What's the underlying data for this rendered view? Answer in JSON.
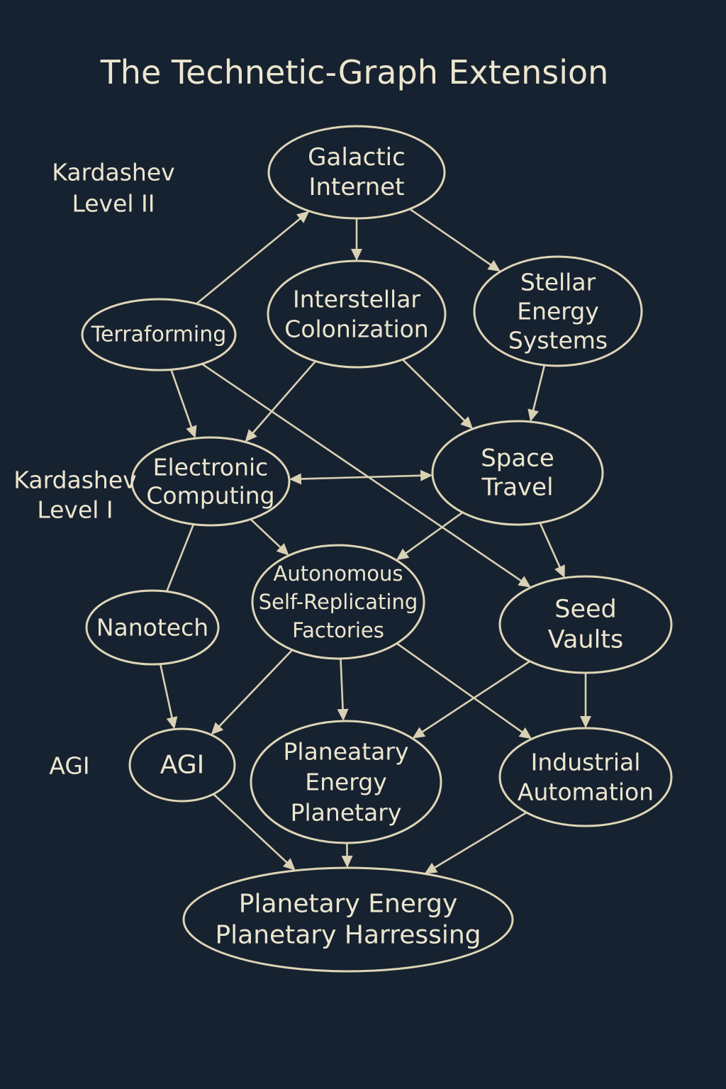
{
  "title": "The Technetic-Graph Extension",
  "colors": {
    "background": "#172230",
    "stroke": "#ddd5b6",
    "text": "#ece6cf"
  },
  "level_labels": [
    {
      "id": "kardashev-2",
      "lines": [
        "Kardashev",
        "Level II"
      ]
    },
    {
      "id": "kardashev-1",
      "lines": [
        "Kardashev",
        "Level I"
      ]
    },
    {
      "id": "agi-level",
      "lines": [
        "AGI"
      ]
    }
  ],
  "nodes": [
    {
      "id": "galactic-internet",
      "lines": [
        "Galactic",
        "Internet"
      ]
    },
    {
      "id": "terraforming",
      "lines": [
        "Terraforming"
      ]
    },
    {
      "id": "interstellar-colonization",
      "lines": [
        "Interstellar",
        "Colonization"
      ]
    },
    {
      "id": "stellar-energy-systems",
      "lines": [
        "Stellar",
        "Energy",
        "Systems"
      ]
    },
    {
      "id": "electronic-computing",
      "lines": [
        "Electronic",
        "Computing"
      ]
    },
    {
      "id": "space-travel",
      "lines": [
        "Space",
        "Travel"
      ]
    },
    {
      "id": "autonomous-factories",
      "lines": [
        "Autonomous",
        "Self-Replicating",
        "Factories"
      ]
    },
    {
      "id": "nanotech",
      "lines": [
        "Nanotech"
      ]
    },
    {
      "id": "seed-vaults",
      "lines": [
        "Seed",
        "Vaults"
      ]
    },
    {
      "id": "agi",
      "lines": [
        "AGI"
      ]
    },
    {
      "id": "planetary-energy",
      "lines": [
        "Planeatary",
        "Energy",
        "Planetary"
      ]
    },
    {
      "id": "industrial-automation",
      "lines": [
        "Industrial",
        "Automation"
      ]
    },
    {
      "id": "planetary-harnessing",
      "lines": [
        "Planetary Energy",
        "Planetary Harressing"
      ]
    }
  ],
  "edges": [
    {
      "from": "terraforming",
      "to": "galactic-internet",
      "arrow": "end"
    },
    {
      "from": "galactic-internet",
      "to": "interstellar-colonization",
      "arrow": "end"
    },
    {
      "from": "galactic-internet",
      "to": "stellar-energy-systems",
      "arrow": "end"
    },
    {
      "from": "terraforming",
      "to": "electronic-computing",
      "arrow": "end"
    },
    {
      "from": "terraforming",
      "to": "seed-vaults",
      "arrow": "end"
    },
    {
      "from": "interstellar-colonization",
      "to": "electronic-computing",
      "arrow": "end"
    },
    {
      "from": "interstellar-colonization",
      "to": "space-travel",
      "arrow": "end"
    },
    {
      "from": "stellar-energy-systems",
      "to": "space-travel",
      "arrow": "end"
    },
    {
      "from": "electronic-computing",
      "to": "space-travel",
      "arrow": "both"
    },
    {
      "from": "electronic-computing",
      "to": "autonomous-factories",
      "arrow": "end"
    },
    {
      "from": "electronic-computing",
      "to": "nanotech",
      "arrow": "none"
    },
    {
      "from": "space-travel",
      "to": "autonomous-factories",
      "arrow": "end"
    },
    {
      "from": "space-travel",
      "to": "seed-vaults",
      "arrow": "end"
    },
    {
      "from": "nanotech",
      "to": "agi",
      "arrow": "end"
    },
    {
      "from": "autonomous-factories",
      "to": "agi",
      "arrow": "end"
    },
    {
      "from": "autonomous-factories",
      "to": "planetary-energy",
      "arrow": "end"
    },
    {
      "from": "autonomous-factories",
      "to": "industrial-automation",
      "arrow": "end"
    },
    {
      "from": "seed-vaults",
      "to": "planetary-energy",
      "arrow": "end"
    },
    {
      "from": "seed-vaults",
      "to": "industrial-automation",
      "arrow": "end"
    },
    {
      "from": "agi",
      "to": "planetary-harnessing",
      "arrow": "end"
    },
    {
      "from": "planetary-energy",
      "to": "planetary-harnessing",
      "arrow": "end"
    },
    {
      "from": "industrial-automation",
      "to": "planetary-harnessing",
      "arrow": "end"
    }
  ]
}
